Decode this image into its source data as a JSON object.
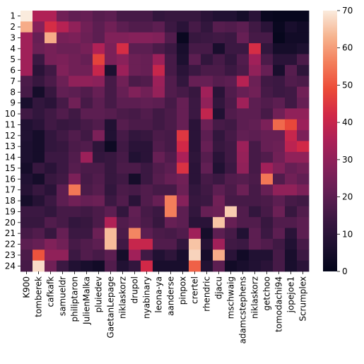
{
  "chart_data": {
    "type": "heatmap",
    "title": "",
    "xlabel": "",
    "ylabel": "",
    "colormap": "rocket",
    "color_range": [
      0,
      70
    ],
    "colorbar_ticks": [
      0,
      10,
      20,
      30,
      40,
      50,
      60,
      70
    ],
    "x_tick_labels": [
      "K900",
      "tomberek",
      "cafkafk",
      "samueldr",
      "philiptaron",
      "JulienMalka",
      "pluiedev",
      "GaetanLepage",
      "niklaskorz",
      "drupol",
      "nyabinary",
      "leona-ya",
      "aanderse",
      "pinpox",
      "crertel",
      "rhendric",
      "djacu",
      "mschwaig",
      "adamcstephens",
      "niklaskorz",
      "getchoo",
      "tomodachi94",
      "jopejoe1",
      "Scrumplex"
    ],
    "y_tick_labels": [
      "1",
      "2",
      "3",
      "4",
      "5",
      "6",
      "7",
      "8",
      "9",
      "10",
      "11",
      "12",
      "13",
      "14",
      "15",
      "16",
      "17",
      "18",
      "19",
      "20",
      "21",
      "22",
      "23",
      "24"
    ],
    "values": [
      [
        70,
        36,
        36,
        24,
        21,
        22,
        19,
        20,
        16,
        16,
        16,
        12,
        13,
        13,
        13,
        10,
        8,
        8,
        5,
        10,
        2,
        1,
        1,
        1
      ],
      [
        62,
        28,
        43,
        37,
        30,
        24,
        20,
        24,
        20,
        18,
        18,
        20,
        14,
        10,
        16,
        12,
        19,
        18,
        20,
        15,
        10,
        2,
        6,
        4
      ],
      [
        33,
        22,
        62,
        25,
        26,
        23,
        20,
        27,
        27,
        28,
        28,
        27,
        18,
        2,
        13,
        14,
        15,
        14,
        22,
        16,
        16,
        1,
        4,
        4
      ],
      [
        33,
        23,
        25,
        23,
        23,
        25,
        36,
        26,
        43,
        20,
        20,
        17,
        14,
        6,
        16,
        16,
        6,
        14,
        14,
        43,
        12,
        5,
        5,
        7
      ],
      [
        33,
        14,
        25,
        26,
        24,
        22,
        47,
        26,
        29,
        23,
        22,
        32,
        16,
        7,
        20,
        12,
        16,
        12,
        18,
        33,
        17,
        10,
        10,
        17
      ],
      [
        33,
        10,
        15,
        27,
        24,
        24,
        40,
        7,
        32,
        23,
        22,
        40,
        16,
        10,
        14,
        17,
        17,
        14,
        17,
        30,
        22,
        6,
        19,
        11
      ],
      [
        17,
        13,
        17,
        23,
        30,
        30,
        29,
        16,
        24,
        17,
        18,
        32,
        18,
        12,
        22,
        22,
        19,
        20,
        37,
        23,
        15,
        14,
        18,
        17
      ],
      [
        16,
        5,
        13,
        21,
        20,
        18,
        22,
        16,
        22,
        27,
        24,
        31,
        18,
        16,
        13,
        33,
        10,
        18,
        22,
        24,
        16,
        14,
        15,
        24
      ],
      [
        6,
        12,
        10,
        16,
        24,
        16,
        20,
        16,
        20,
        20,
        21,
        20,
        16,
        22,
        14,
        30,
        12,
        17,
        33,
        20,
        18,
        20,
        15,
        22
      ],
      [
        15,
        12,
        15,
        18,
        15,
        20,
        20,
        19,
        17,
        16,
        18,
        15,
        17,
        22,
        14,
        39,
        8,
        18,
        20,
        20,
        16,
        24,
        30,
        30
      ],
      [
        8,
        10,
        15,
        13,
        14,
        16,
        18,
        8,
        19,
        17,
        17,
        15,
        17,
        22,
        10,
        23,
        16,
        15,
        20,
        21,
        26,
        53,
        48,
        32
      ],
      [
        8,
        5,
        12,
        15,
        18,
        15,
        26,
        8,
        16,
        12,
        13,
        17,
        16,
        45,
        10,
        20,
        12,
        16,
        21,
        20,
        22,
        22,
        40,
        26
      ],
      [
        7,
        5,
        12,
        13,
        17,
        18,
        11,
        3,
        15,
        10,
        10,
        18,
        16,
        42,
        10,
        22,
        13,
        15,
        32,
        16,
        22,
        23,
        38,
        42
      ],
      [
        7,
        5,
        14,
        14,
        18,
        32,
        12,
        13,
        16,
        8,
        10,
        22,
        18,
        35,
        11,
        19,
        10,
        15,
        31,
        16,
        18,
        24,
        30,
        30
      ],
      [
        5,
        13,
        10,
        14,
        19,
        17,
        17,
        13,
        17,
        17,
        14,
        18,
        20,
        44,
        10,
        21,
        8,
        14,
        30,
        16,
        33,
        27,
        22,
        24
      ],
      [
        8,
        5,
        13,
        15,
        26,
        16,
        18,
        13,
        15,
        5,
        14,
        19,
        22,
        24,
        10,
        16,
        14,
        18,
        19,
        17,
        55,
        18,
        24,
        21
      ],
      [
        9,
        13,
        10,
        20,
        55,
        17,
        19,
        12,
        17,
        16,
        18,
        16,
        16,
        23,
        12,
        15,
        20,
        17,
        23,
        16,
        22,
        30,
        30,
        26
      ],
      [
        5,
        9,
        14,
        20,
        24,
        22,
        23,
        14,
        18,
        10,
        18,
        22,
        56,
        28,
        13,
        14,
        24,
        16,
        16,
        16,
        17,
        20,
        16,
        15
      ],
      [
        14,
        14,
        12,
        16,
        16,
        15,
        17,
        20,
        12,
        21,
        16,
        14,
        56,
        20,
        12,
        22,
        23,
        66,
        18,
        12,
        16,
        23,
        13,
        18
      ],
      [
        13,
        13,
        18,
        16,
        12,
        13,
        17,
        36,
        18,
        20,
        17,
        13,
        22,
        20,
        10,
        10,
        65,
        22,
        18,
        18,
        13,
        18,
        18,
        20
      ],
      [
        16,
        18,
        13,
        22,
        14,
        14,
        23,
        64,
        17,
        57,
        20,
        17,
        16,
        18,
        33,
        5,
        20,
        16,
        8,
        20,
        14,
        20,
        10,
        20
      ],
      [
        20,
        22,
        27,
        24,
        16,
        18,
        20,
        64,
        15,
        40,
        40,
        18,
        18,
        12,
        65,
        9,
        33,
        15,
        14,
        20,
        18,
        15,
        8,
        16
      ],
      [
        17,
        50,
        30,
        30,
        14,
        18,
        16,
        20,
        5,
        33,
        15,
        8,
        11,
        6,
        67,
        5,
        62,
        10,
        4,
        8,
        8,
        16,
        6,
        14
      ],
      [
        16,
        68,
        24,
        14,
        8,
        6,
        4,
        18,
        8,
        12,
        42,
        6,
        6,
        6,
        52,
        8,
        20,
        4,
        6,
        8,
        10,
        16,
        6,
        10
      ]
    ]
  }
}
